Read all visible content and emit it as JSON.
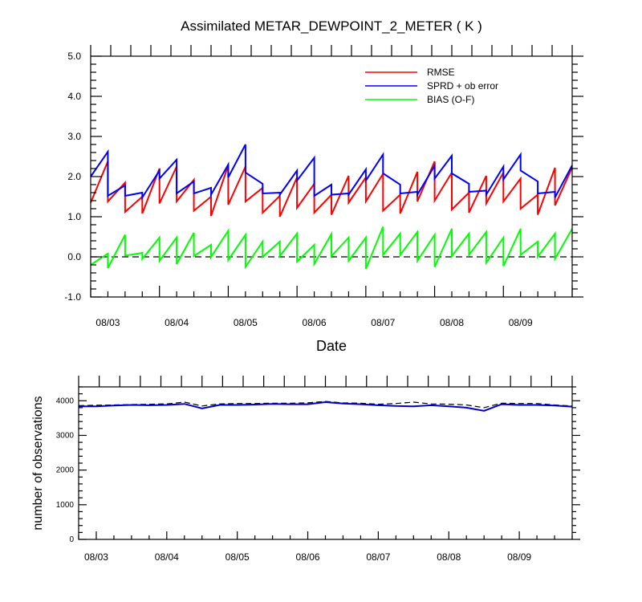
{
  "chart_data": [
    {
      "type": "line",
      "title": "Assimilated METAR_DEWPOINT_2_METER ( K )",
      "xlabel": "Date",
      "ylabel": "",
      "ylim": [
        -1.0,
        5.0
      ],
      "yticks": [
        "5.0",
        "4.0",
        "3.0",
        "2.0",
        "1.0",
        "0.0",
        "-1.0"
      ],
      "xticks": [
        "08/03",
        "08/04",
        "08/05",
        "08/06",
        "08/07",
        "08/08",
        "08/09"
      ],
      "legend_position": "top-right",
      "x": [
        0,
        1,
        1,
        2,
        2,
        3,
        3,
        4,
        4,
        5,
        5,
        6,
        6,
        7,
        7,
        8,
        8,
        9,
        9,
        10,
        10,
        11,
        11,
        12,
        12,
        13,
        13,
        14,
        14,
        15,
        15,
        16,
        16,
        17,
        17,
        18,
        18,
        19,
        19,
        20,
        20,
        21,
        21,
        22,
        22,
        23,
        23,
        24,
        24,
        25,
        25,
        26,
        26,
        27,
        27,
        28
      ],
      "series": [
        {
          "name": "RMSE",
          "color": "#ff0000",
          "values": [
            1.35,
            2.38,
            1.38,
            1.85,
            1.12,
            1.5,
            1.08,
            2.2,
            1.33,
            2.25,
            1.38,
            1.92,
            1.15,
            1.5,
            1.02,
            2.28,
            1.3,
            2.25,
            1.38,
            1.72,
            1.1,
            1.52,
            1.0,
            1.98,
            1.22,
            1.82,
            1.1,
            1.55,
            1.05,
            2.02,
            1.35,
            1.98,
            1.38,
            2.07,
            1.15,
            1.55,
            1.08,
            2.12,
            1.38,
            2.38,
            1.4,
            2.1,
            1.18,
            1.6,
            1.1,
            2.02,
            1.33,
            2.1,
            1.38,
            1.95,
            1.2,
            1.55,
            1.05,
            2.22,
            1.28,
            2.23
          ]
        },
        {
          "name": "SPRD + ob error",
          "color": "#0000ff",
          "values": [
            2.0,
            2.62,
            1.52,
            1.78,
            1.52,
            1.6,
            1.48,
            2.15,
            1.95,
            2.42,
            1.58,
            1.88,
            1.58,
            1.72,
            1.55,
            2.3,
            1.98,
            2.8,
            2.1,
            1.82,
            1.58,
            1.6,
            1.55,
            2.15,
            1.9,
            2.47,
            1.52,
            1.8,
            1.55,
            1.58,
            1.55,
            2.18,
            1.9,
            2.55,
            2.08,
            1.8,
            1.58,
            1.62,
            1.55,
            2.27,
            1.95,
            2.52,
            2.08,
            1.82,
            1.62,
            1.65,
            1.55,
            2.25,
            1.93,
            2.55,
            2.15,
            1.88,
            1.58,
            1.62,
            1.48,
            2.28
          ]
        },
        {
          "name": "BIAS (O-F)",
          "color": "#00ff00",
          "values": [
            -0.2,
            0.08,
            -0.28,
            0.55,
            0.03,
            0.1,
            -0.05,
            0.48,
            -0.1,
            0.48,
            -0.18,
            0.6,
            0.02,
            0.3,
            0.0,
            0.65,
            -0.08,
            0.55,
            -0.25,
            0.38,
            0.0,
            0.38,
            0.02,
            0.58,
            -0.12,
            0.3,
            -0.18,
            0.57,
            0.02,
            0.48,
            -0.1,
            0.48,
            -0.3,
            0.75,
            0.05,
            0.58,
            0.05,
            0.62,
            -0.1,
            0.55,
            -0.25,
            0.7,
            0.02,
            0.58,
            0.05,
            0.62,
            -0.15,
            0.48,
            -0.23,
            0.7,
            0.05,
            0.38,
            0.0,
            0.58,
            -0.05,
            0.7
          ]
        }
      ]
    },
    {
      "type": "line",
      "title": "",
      "xlabel": "",
      "ylabel": "number of observations",
      "ylim": [
        0,
        4400
      ],
      "yticks": [
        "4000",
        "3000",
        "2000",
        "1000",
        "0"
      ],
      "xticks": [
        "08/03",
        "08/04",
        "08/05",
        "08/06",
        "08/07",
        "08/08",
        "08/09"
      ],
      "x": [
        0,
        1,
        2,
        3,
        4,
        5,
        6,
        7,
        8,
        9,
        10,
        11,
        12,
        13,
        14,
        15,
        16,
        17,
        18,
        19,
        20,
        21,
        22,
        23,
        24,
        25,
        26,
        27,
        28
      ],
      "series": [
        {
          "name": "",
          "style": "dashed",
          "color": "#000000",
          "values": [
            3860,
            3870,
            3880,
            3890,
            3900,
            3910,
            3960,
            3850,
            3910,
            3920,
            3920,
            3930,
            3930,
            3940,
            3980,
            3940,
            3930,
            3900,
            3920,
            3960,
            3910,
            3900,
            3880,
            3800,
            3930,
            3920,
            3920,
            3880,
            3850
          ]
        },
        {
          "name": "",
          "style": "solid",
          "color": "#0000cc",
          "values": [
            3840,
            3840,
            3860,
            3880,
            3870,
            3880,
            3910,
            3780,
            3880,
            3880,
            3890,
            3910,
            3900,
            3900,
            3960,
            3920,
            3900,
            3870,
            3850,
            3840,
            3870,
            3840,
            3800,
            3710,
            3900,
            3880,
            3880,
            3860,
            3830
          ]
        }
      ]
    }
  ]
}
